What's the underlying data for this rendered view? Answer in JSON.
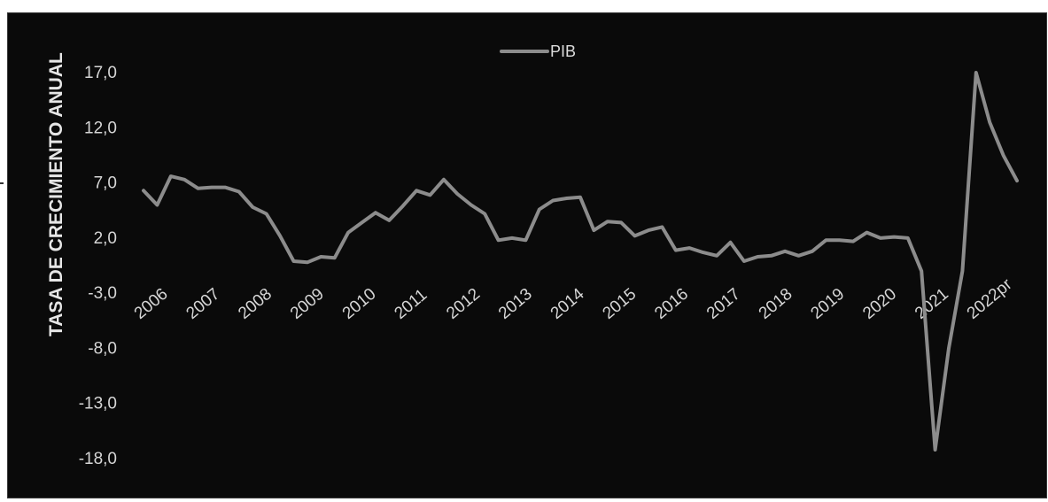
{
  "chart_data": {
    "type": "line",
    "title": "",
    "xlabel": "",
    "ylabel": "TASA DE CRECIMIENTO ANUAL",
    "ylim": [
      -18,
      17
    ],
    "yticks": [
      "17,0",
      "12,0",
      "7,0",
      "2,0",
      "-3,0",
      "-8,0",
      "-13,0",
      "-18,0"
    ],
    "ytick_values": [
      17,
      12,
      7,
      2,
      -3,
      -8,
      -13,
      -18
    ],
    "xticks": [
      "2006",
      "2007",
      "2008",
      "2009",
      "2010",
      "2011",
      "2012",
      "2013",
      "2014",
      "2015",
      "2016",
      "2017",
      "2018",
      "2019",
      "2020",
      "2021",
      "2022pr"
    ],
    "legend": {
      "position": "top-center"
    },
    "grid": false,
    "series": [
      {
        "name": "PIB",
        "color": "#8c8c8c",
        "x": [
          2006.0,
          2006.25,
          2006.5,
          2006.75,
          2007.0,
          2007.25,
          2007.5,
          2007.75,
          2008.0,
          2008.25,
          2008.5,
          2008.75,
          2009.0,
          2009.25,
          2009.5,
          2009.75,
          2010.0,
          2010.25,
          2010.5,
          2010.75,
          2011.0,
          2011.25,
          2011.5,
          2011.75,
          2012.0,
          2012.25,
          2012.5,
          2012.75,
          2013.0,
          2013.25,
          2013.5,
          2013.75,
          2014.0,
          2014.25,
          2014.5,
          2014.75,
          2015.0,
          2015.25,
          2015.5,
          2015.75,
          2016.0,
          2016.25,
          2016.5,
          2016.75,
          2017.0,
          2017.25,
          2017.5,
          2017.75,
          2018.0,
          2018.25,
          2018.5,
          2018.75,
          2019.0,
          2019.25,
          2019.5,
          2019.75,
          2020.0,
          2020.25,
          2020.5,
          2020.75,
          2021.0,
          2021.25,
          2021.5,
          2021.75,
          2022.0
        ],
        "values": [
          6.3,
          5.0,
          7.6,
          7.3,
          6.5,
          6.6,
          6.6,
          6.2,
          4.8,
          4.2,
          2.2,
          -0.1,
          -0.2,
          0.3,
          0.2,
          2.5,
          3.4,
          4.3,
          3.6,
          4.9,
          6.3,
          5.9,
          7.3,
          6.0,
          5.0,
          4.2,
          1.8,
          2.0,
          1.8,
          4.6,
          5.4,
          5.6,
          5.7,
          2.7,
          3.5,
          3.4,
          2.2,
          2.7,
          3.0,
          0.9,
          1.1,
          0.7,
          0.4,
          1.6,
          -0.1,
          0.3,
          0.4,
          0.8,
          0.4,
          0.8,
          1.8,
          1.8,
          1.7,
          2.5,
          2.0,
          2.1,
          2.0,
          -1.0,
          -17.2,
          -8.0,
          -1.0,
          17.0,
          12.5,
          9.5,
          7.2
        ]
      }
    ]
  }
}
